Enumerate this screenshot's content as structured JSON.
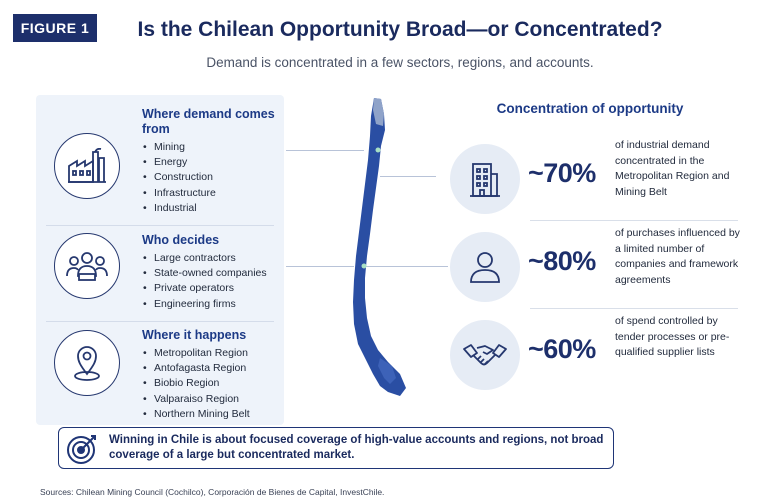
{
  "figure_label": "FIGURE 1",
  "title": "Is the Chilean Opportunity Broad—or Concentrated?",
  "subtitle": "Demand is concentrated in a few sectors, regions, and accounts.",
  "left_sections": [
    {
      "heading": "Where demand comes from",
      "icon": "factory-icon",
      "items": [
        "Mining",
        "Energy",
        "Construction",
        "Infrastructure",
        "Industrial"
      ]
    },
    {
      "heading": "Who decides",
      "icon": "people-group-icon",
      "items": [
        "Large contractors",
        "State-owned companies",
        "Private operators",
        "Engineering firms"
      ]
    },
    {
      "heading": "Where it happens",
      "icon": "location-pin-icon",
      "items": [
        "Metropolitan Region",
        "Antofagasta Region",
        "Biobio Region",
        "Valparaiso Region",
        "Northern Mining Belt"
      ]
    }
  ],
  "right_title": "Concentration of opportunity",
  "stats": [
    {
      "value": "~70%",
      "icon": "office-building-icon",
      "description": "of industrial demand concentrated in the Metropolitan Region and Mining Belt"
    },
    {
      "value": "~80%",
      "icon": "person-icon",
      "description": "of purchases influenced by a limited number of companies and framework agreements"
    },
    {
      "value": "~60%",
      "icon": "handshake-icon",
      "description": "of spend controlled by tender processes or pre-qualified supplier lists"
    }
  ],
  "callout": {
    "icon": "target-icon",
    "text": "Winning in Chile is about focused coverage of high-value accounts and regions, not broad coverage of a large but concentrated market."
  },
  "sources": "Sources: Chilean Mining Council (Cochilco), Corporación de Bienes de Capital, InvestChile.",
  "colors": {
    "navy": "#1d2f6b",
    "accent_blue": "#1c3a86",
    "map_blue": "#2a4ea3",
    "panel_bg": "#eef3fa"
  }
}
